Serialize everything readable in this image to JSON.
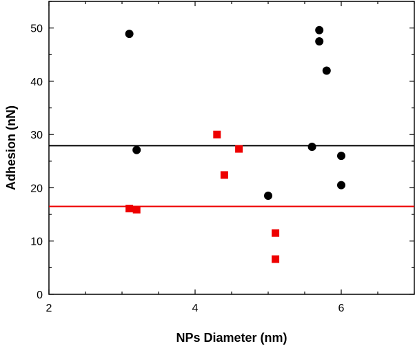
{
  "chart_data": {
    "type": "scatter",
    "xlabel": "NPs Diameter (nm)",
    "ylabel": "Adhesion (nN)",
    "xlim": [
      2,
      7
    ],
    "ylim": [
      0,
      55
    ],
    "x_ticks": [
      2,
      4,
      6
    ],
    "y_ticks": [
      0,
      10,
      20,
      30,
      40,
      50
    ],
    "grid": false,
    "legend": "none",
    "series": [
      {
        "color": "#000000",
        "marker": "circle",
        "points": [
          {
            "x": 3.1,
            "y": 48.9
          },
          {
            "x": 3.2,
            "y": 27.1
          },
          {
            "x": 5.0,
            "y": 18.5
          },
          {
            "x": 5.6,
            "y": 27.7
          },
          {
            "x": 5.7,
            "y": 49.6
          },
          {
            "x": 5.7,
            "y": 47.5
          },
          {
            "x": 5.8,
            "y": 42.0
          },
          {
            "x": 6.0,
            "y": 26.0
          },
          {
            "x": 6.0,
            "y": 20.5
          }
        ],
        "reference_line_y": 27.9
      },
      {
        "color": "#ee0000",
        "marker": "square",
        "points": [
          {
            "x": 3.1,
            "y": 16.1
          },
          {
            "x": 3.2,
            "y": 15.9
          },
          {
            "x": 4.3,
            "y": 30.0
          },
          {
            "x": 4.4,
            "y": 22.4
          },
          {
            "x": 4.6,
            "y": 27.3
          },
          {
            "x": 5.1,
            "y": 11.5
          },
          {
            "x": 5.1,
            "y": 6.6
          }
        ],
        "reference_line_y": 16.5
      }
    ]
  }
}
